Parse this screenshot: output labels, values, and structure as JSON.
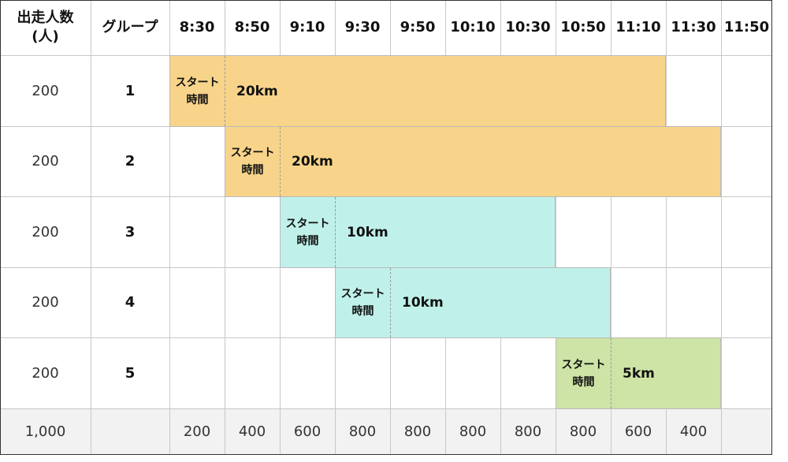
{
  "header": {
    "runners_label_line1": "出走人数",
    "runners_label_line2": "(人)",
    "group_label": "グループ",
    "times": [
      "8:30",
      "8:50",
      "9:10",
      "9:30",
      "9:50",
      "10:10",
      "10:30",
      "10:50",
      "11:10",
      "11:30",
      "11:50"
    ]
  },
  "rows": [
    {
      "runners": "200",
      "group": "1",
      "start_index": 0,
      "end_index": 9,
      "distance": "20km",
      "color": "#f8d48a"
    },
    {
      "runners": "200",
      "group": "2",
      "start_index": 1,
      "end_index": 10,
      "distance": "20km",
      "color": "#f8d48a"
    },
    {
      "runners": "200",
      "group": "3",
      "start_index": 2,
      "end_index": 7,
      "distance": "10km",
      "color": "#bff1ea"
    },
    {
      "runners": "200",
      "group": "4",
      "start_index": 3,
      "end_index": 8,
      "distance": "10km",
      "color": "#bff1ea"
    },
    {
      "runners": "200",
      "group": "5",
      "start_index": 7,
      "end_index": 10,
      "distance": "5km",
      "color": "#cde4a6"
    }
  ],
  "start_label_line1": "スタート",
  "start_label_line2": "時間",
  "totals": {
    "runners": "1,000",
    "group": "",
    "by_time": [
      "200",
      "400",
      "600",
      "800",
      "800",
      "800",
      "800",
      "800",
      "600",
      "400",
      ""
    ]
  },
  "colors": {
    "orange": "#f8d48a",
    "cyan": "#bff1ea",
    "green": "#cde4a6",
    "summary_bg": "#f2f2f2",
    "grid_line": "#c8c8c8",
    "outer_border": "#333333"
  }
}
